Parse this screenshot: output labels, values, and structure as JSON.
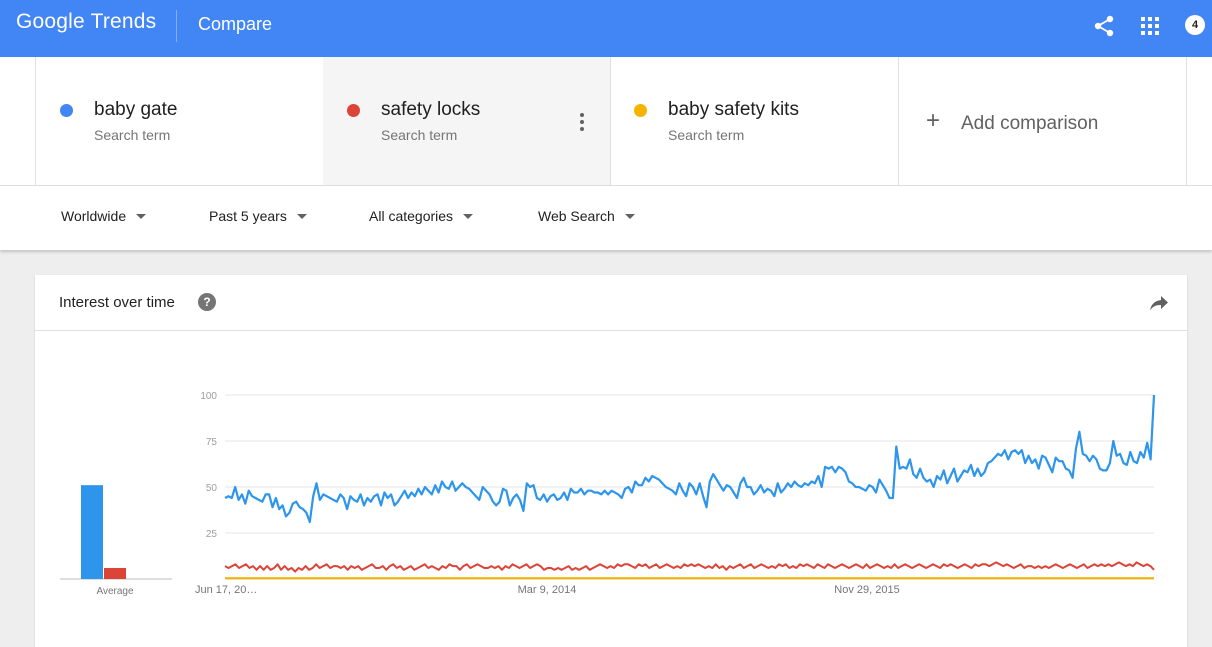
{
  "header": {
    "logo_google": "Google",
    "logo_trends": "Trends",
    "page_title": "Compare",
    "notification_count": "4",
    "icons": [
      "share-icon",
      "apps-grid-icon"
    ]
  },
  "terms": [
    {
      "name": "baby gate",
      "sub": "Search term",
      "color": "#4285f4"
    },
    {
      "name": "safety locks",
      "sub": "Search term",
      "color": "#db4437"
    },
    {
      "name": "baby safety kits",
      "sub": "Search term",
      "color": "#f4b400"
    }
  ],
  "add_comparison": {
    "label": "Add comparison"
  },
  "filters": {
    "region": "Worldwide",
    "time": "Past 5 years",
    "category": "All categories",
    "search_type": "Web Search"
  },
  "card": {
    "title": "Interest over time",
    "help": "?"
  },
  "chart_data": {
    "type": "line",
    "y_ticks": [
      "100",
      "75",
      "50",
      "25"
    ],
    "ylim": [
      0,
      100
    ],
    "x_labels": [
      "Jun 17, 20…",
      "Mar 9, 2014",
      "Nov 29, 2015"
    ],
    "average_label": "Average",
    "average": [
      {
        "name": "baby gate",
        "value": 51
      },
      {
        "name": "safety locks",
        "value": 6
      },
      {
        "name": "baby safety kits",
        "value": 0
      }
    ],
    "series": [
      {
        "name": "baby gate",
        "color": "#2d95ec",
        "values": [
          44,
          45,
          44,
          50,
          43,
          46,
          41,
          48,
          45,
          44,
          43,
          42,
          46,
          46,
          39,
          44,
          38,
          40,
          34,
          36,
          41,
          42,
          39,
          38,
          36,
          31,
          45,
          52,
          43,
          46,
          45,
          44,
          43,
          42,
          46,
          44,
          38,
          45,
          43,
          42,
          46,
          40,
          44,
          42,
          45,
          46,
          40,
          47,
          44,
          46,
          40,
          42,
          45,
          48,
          44,
          47,
          45,
          49,
          46,
          50,
          48,
          46,
          51,
          47,
          53,
          50,
          49,
          53,
          48,
          50,
          52,
          50,
          49,
          47,
          45,
          43,
          50,
          48,
          46,
          42,
          40,
          42,
          49,
          48,
          40,
          44,
          46,
          43,
          37,
          52,
          50,
          51,
          44,
          43,
          46,
          42,
          45,
          46,
          43,
          44,
          47,
          43,
          49,
          47,
          47,
          49,
          46,
          48,
          48,
          47,
          47,
          46,
          48,
          46,
          48,
          47,
          46,
          44,
          49,
          50,
          47,
          53,
          51,
          51,
          55,
          53,
          56,
          55,
          54,
          52,
          50,
          49,
          48,
          46,
          52,
          48,
          45,
          52,
          50,
          46,
          52,
          45,
          39,
          53,
          57,
          54,
          51,
          48,
          51,
          50,
          47,
          44,
          52,
          55,
          50,
          50,
          46,
          48,
          51,
          47,
          49,
          48,
          45,
          52,
          47,
          49,
          52,
          50,
          53,
          51,
          50,
          52,
          51,
          53,
          52,
          56,
          50,
          61,
          60,
          61,
          58,
          61,
          60,
          58,
          53,
          52,
          50,
          50,
          49,
          48,
          51,
          50,
          47,
          54,
          51,
          48,
          44,
          44,
          72,
          60,
          61,
          60,
          65,
          57,
          55,
          60,
          55,
          53,
          54,
          50,
          56,
          54,
          59,
          52,
          56,
          60,
          53,
          56,
          59,
          58,
          62,
          56,
          60,
          56,
          58,
          63,
          64,
          66,
          68,
          67,
          70,
          65,
          69,
          70,
          68,
          70,
          63,
          67,
          63,
          65,
          60,
          67,
          66,
          62,
          58,
          66,
          64,
          64,
          60,
          59,
          55,
          71,
          80,
          68,
          67,
          64,
          67,
          65,
          60,
          59,
          59,
          63,
          75,
          67,
          68,
          63,
          62,
          69,
          64,
          63,
          69,
          66,
          74,
          65,
          100
        ]
      },
      {
        "name": "safety locks",
        "color": "#db4437",
        "values": [
          7,
          6,
          7,
          8,
          6,
          7,
          8,
          6,
          7,
          5,
          7,
          5,
          7,
          5,
          6,
          8,
          5,
          7,
          5,
          6,
          4,
          6,
          5,
          7,
          5,
          6,
          8,
          6,
          7,
          8,
          6,
          7,
          7,
          6,
          7,
          5,
          7,
          6,
          7,
          5,
          6,
          7,
          8,
          6,
          6,
          7,
          5,
          7,
          8,
          6,
          7,
          5,
          6,
          7,
          5,
          6,
          7,
          8,
          6,
          7,
          6,
          5,
          7,
          6,
          8,
          7,
          7,
          5,
          7,
          8,
          6,
          7,
          8,
          7,
          6,
          6,
          7,
          6,
          7,
          5,
          7,
          6,
          8,
          7,
          6,
          7,
          8,
          6,
          7,
          8,
          7,
          5,
          6,
          6,
          5,
          6,
          5,
          6,
          7,
          5,
          6,
          5,
          6,
          7,
          5,
          6,
          7,
          8,
          7,
          6,
          7,
          6,
          8,
          7,
          8,
          8,
          7,
          6,
          8,
          7,
          8,
          6,
          7,
          8,
          6,
          7,
          8,
          7,
          6,
          7,
          6,
          8,
          7,
          8,
          7,
          8,
          7,
          6,
          7,
          6,
          8,
          6,
          7,
          5,
          7,
          6,
          7,
          8,
          6,
          7,
          8,
          6,
          7,
          8,
          7,
          6,
          7,
          6,
          8,
          7,
          8,
          6,
          7,
          6,
          8,
          7,
          8,
          7,
          6,
          8,
          7,
          6,
          8,
          7,
          6,
          7,
          8,
          7,
          6,
          7,
          8,
          7,
          6,
          8,
          6,
          7,
          8,
          7,
          6,
          7,
          6,
          8,
          6,
          7,
          8,
          7,
          6,
          7,
          8,
          7,
          6,
          7,
          8,
          7,
          6,
          8,
          7,
          8,
          7,
          6,
          7,
          8,
          7,
          6,
          8,
          7,
          8,
          8,
          7,
          8,
          9,
          8,
          7,
          8,
          7,
          6,
          7,
          8,
          6,
          7,
          7,
          6,
          7,
          6,
          7,
          6,
          7,
          8,
          7,
          6,
          7,
          8,
          7,
          6,
          7,
          8,
          6,
          7,
          8,
          7,
          8,
          7,
          8,
          7,
          8,
          9,
          8,
          7,
          8,
          7,
          9,
          8,
          7,
          8,
          7,
          5
        ]
      },
      {
        "name": "baby safety kits",
        "color": "#f4b400",
        "values": [
          0.5,
          0.5
        ]
      }
    ]
  }
}
